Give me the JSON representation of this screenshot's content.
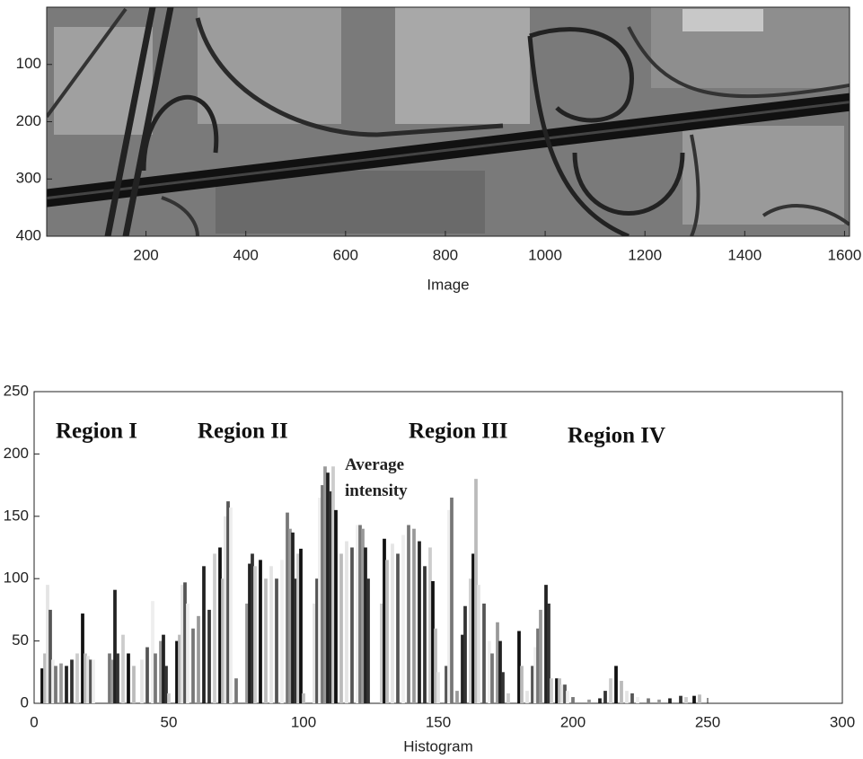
{
  "chart_data": [
    {
      "type": "image",
      "xlabel": "Image",
      "xlim": [
        1,
        1610
      ],
      "ylim": [
        400,
        0
      ],
      "xticks": [
        200,
        400,
        600,
        800,
        1000,
        1200,
        1400,
        1600
      ],
      "yticks": [
        100,
        200,
        300,
        400
      ]
    },
    {
      "type": "bar",
      "xlabel": "Histogram",
      "xlim": [
        0,
        300
      ],
      "ylim": [
        0,
        250
      ],
      "xticks": [
        0,
        50,
        100,
        150,
        200,
        250,
        300
      ],
      "yticks": [
        0,
        50,
        100,
        150,
        200,
        250
      ],
      "annotations": [
        "Region I",
        "Region II",
        "Region III",
        "Region IV",
        "Average intensity"
      ],
      "x": [
        3,
        4,
        5,
        6,
        7,
        8,
        10,
        12,
        14,
        16,
        18,
        19,
        20,
        21,
        22,
        28,
        29,
        30,
        31,
        33,
        35,
        37,
        40,
        42,
        44,
        45,
        47,
        48,
        49,
        50,
        53,
        54,
        55,
        56,
        57,
        59,
        61,
        63,
        65,
        67,
        69,
        70,
        71,
        72,
        73,
        75,
        79,
        80,
        81,
        82,
        84,
        86,
        88,
        90,
        92,
        94,
        95,
        96,
        97,
        98,
        99,
        100,
        104,
        105,
        106,
        107,
        108,
        109,
        110,
        111,
        112,
        114,
        116,
        118,
        120,
        121,
        122,
        123,
        124,
        129,
        130,
        131,
        133,
        135,
        137,
        139,
        141,
        143,
        145,
        147,
        148,
        149,
        150,
        153,
        154,
        155,
        157,
        159,
        160,
        162,
        163,
        164,
        165,
        167,
        169,
        170,
        172,
        173,
        174,
        176,
        180,
        181,
        183,
        185,
        186,
        187,
        188,
        190,
        191,
        192,
        194,
        195,
        196,
        197,
        198,
        200,
        206,
        210,
        212,
        214,
        216,
        218,
        220,
        222,
        224,
        228,
        232,
        236,
        240,
        242,
        245,
        247
      ],
      "values": [
        28,
        40,
        95,
        75,
        35,
        30,
        32,
        30,
        35,
        40,
        72,
        40,
        38,
        35,
        35,
        40,
        35,
        91,
        40,
        55,
        40,
        30,
        35,
        45,
        82,
        40,
        50,
        55,
        30,
        8,
        50,
        55,
        95,
        97,
        80,
        60,
        70,
        110,
        75,
        120,
        125,
        100,
        150,
        162,
        157,
        20,
        80,
        112,
        120,
        110,
        115,
        100,
        110,
        100,
        115,
        153,
        140,
        137,
        100,
        120,
        124,
        8,
        80,
        100,
        165,
        175,
        190,
        185,
        170,
        190,
        155,
        120,
        130,
        125,
        143,
        143,
        140,
        125,
        100,
        80,
        132,
        115,
        128,
        120,
        135,
        143,
        140,
        130,
        110,
        125,
        98,
        60,
        25,
        30,
        155,
        165,
        10,
        55,
        78,
        100,
        120,
        180,
        95,
        80,
        50,
        40,
        65,
        50,
        25,
        8,
        58,
        30,
        10,
        30,
        45,
        60,
        75,
        95,
        80,
        20,
        20,
        20,
        15,
        15,
        10,
        5,
        3,
        4,
        10,
        20,
        30,
        18,
        10,
        8,
        5,
        4,
        3,
        4,
        6,
        5,
        6,
        7
      ]
    }
  ]
}
